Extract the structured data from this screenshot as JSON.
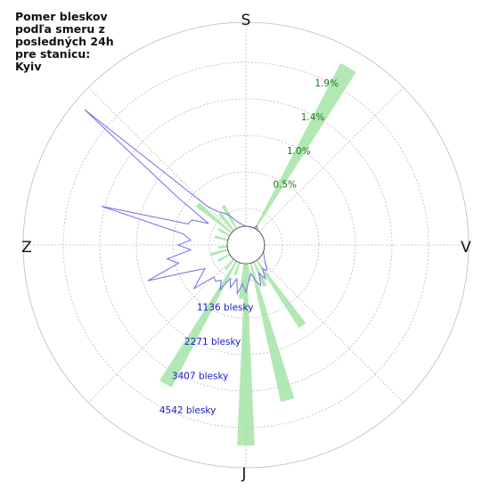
{
  "title": "Pomer bleskov\npodľa smeru z\nposledných 24h\npre stanicu:\nKyiv",
  "directions": {
    "north": "S",
    "east": "V",
    "south": "J",
    "west": "Z"
  },
  "colors": {
    "ratio": "#98e09a",
    "count": "#7a7ae8",
    "ring": "#bbbbbb",
    "green_text": "#1a7a1a",
    "blue_text": "#1a1acc"
  },
  "chart_data": {
    "type": "polar",
    "theta_zero": "north",
    "theta_direction": "clockwise",
    "ratio_ticks": [
      "0.5%",
      "1.0%",
      "1.4%",
      "1.9%"
    ],
    "count_ticks": [
      "1136 blesky",
      "2271 blesky",
      "3407 blesky",
      "4542 blesky"
    ],
    "series": [
      {
        "kind": "bars",
        "unit": "%",
        "rmax": 2.3,
        "data": [
          {
            "dir": 30,
            "value": 2.1
          },
          {
            "dir": 145,
            "value": 0.9
          },
          {
            "dir": 155,
            "value": 0.3
          },
          {
            "dir": 165,
            "value": 1.6
          },
          {
            "dir": 175,
            "value": 0.2
          },
          {
            "dir": 180,
            "value": 2.05
          },
          {
            "dir": 185,
            "value": 0.4
          },
          {
            "dir": 200,
            "value": 0.15
          },
          {
            "dir": 210,
            "value": 1.6
          },
          {
            "dir": 220,
            "value": 0.15
          },
          {
            "dir": 240,
            "value": 0.15
          },
          {
            "dir": 255,
            "value": 0.2
          },
          {
            "dir": 265,
            "value": 0.1
          },
          {
            "dir": 285,
            "value": 0.15
          },
          {
            "dir": 300,
            "value": 0.15
          },
          {
            "dir": 310,
            "value": 0.5
          },
          {
            "dir": 320,
            "value": 0.25
          },
          {
            "dir": 330,
            "value": 0.3
          }
        ]
      },
      {
        "kind": "line",
        "unit": "blesky",
        "rmax": 5000,
        "points": [
          [
            0,
            0
          ],
          [
            10,
            0
          ],
          [
            20,
            0
          ],
          [
            25,
            0
          ],
          [
            30,
            80
          ],
          [
            40,
            0
          ],
          [
            60,
            0
          ],
          [
            90,
            0
          ],
          [
            110,
            0
          ],
          [
            120,
            50
          ],
          [
            130,
            150
          ],
          [
            140,
            350
          ],
          [
            145,
            250
          ],
          [
            150,
            500
          ],
          [
            155,
            300
          ],
          [
            160,
            600
          ],
          [
            165,
            450
          ],
          [
            170,
            250
          ],
          [
            175,
            400
          ],
          [
            180,
            700
          ],
          [
            185,
            500
          ],
          [
            190,
            750
          ],
          [
            195,
            400
          ],
          [
            200,
            650
          ],
          [
            205,
            450
          ],
          [
            210,
            800
          ],
          [
            215,
            600
          ],
          [
            220,
            700
          ],
          [
            225,
            650
          ],
          [
            230,
            1200
          ],
          [
            235,
            900
          ],
          [
            240,
            700
          ],
          [
            245,
            1100
          ],
          [
            250,
            2100
          ],
          [
            255,
            1250
          ],
          [
            260,
            1500
          ],
          [
            265,
            900
          ],
          [
            270,
            1200
          ],
          [
            275,
            900
          ],
          [
            280,
            1100
          ],
          [
            285,
            3200
          ],
          [
            290,
            1050
          ],
          [
            295,
            1000
          ],
          [
            300,
            600
          ],
          [
            305,
            1600
          ],
          [
            310,
            4700
          ],
          [
            315,
            900
          ],
          [
            320,
            600
          ],
          [
            325,
            500
          ],
          [
            330,
            400
          ],
          [
            335,
            250
          ],
          [
            340,
            150
          ],
          [
            350,
            50
          ],
          [
            360,
            0
          ]
        ]
      }
    ]
  }
}
